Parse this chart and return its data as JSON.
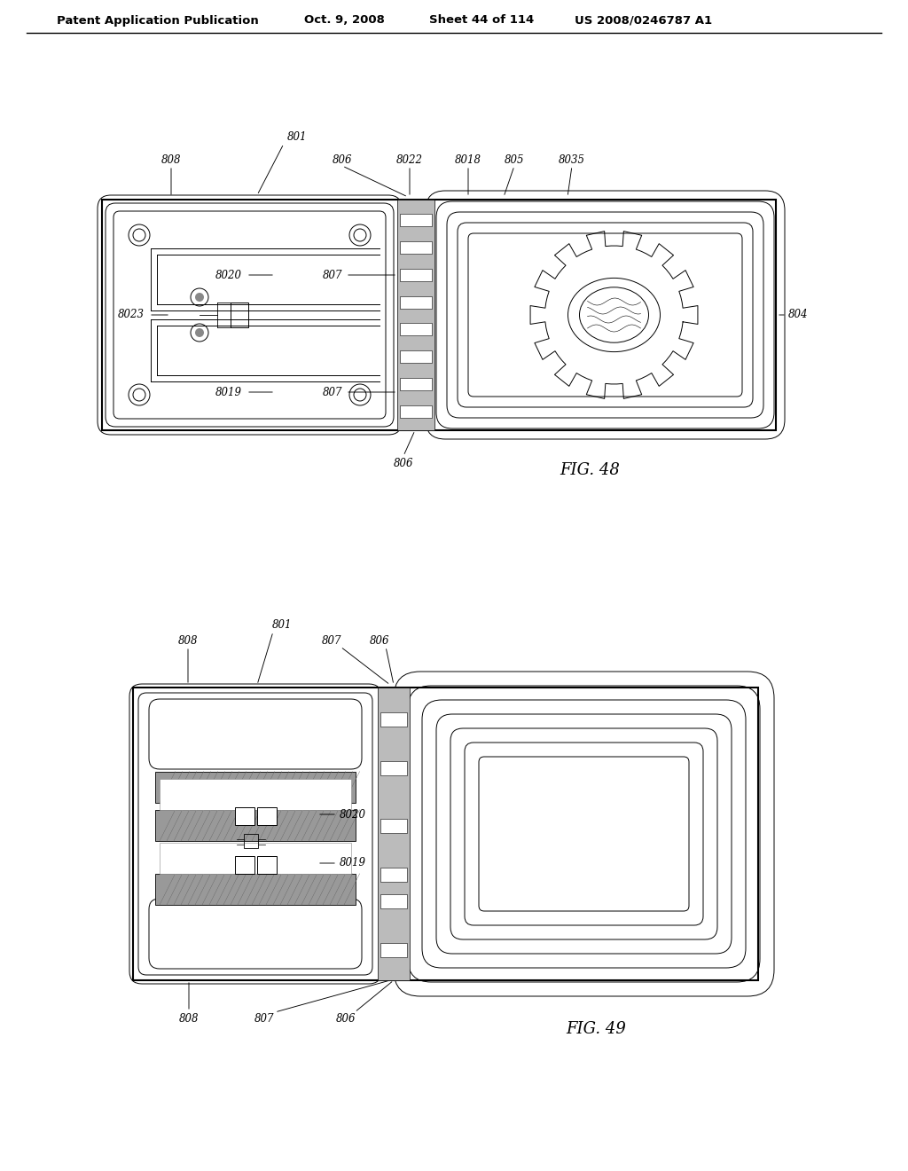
{
  "bg_color": "#ffffff",
  "line_color": "#000000",
  "header_text": "Patent Application Publication",
  "header_date": "Oct. 9, 2008",
  "header_sheet": "Sheet 44 of 114",
  "header_patent": "US 2008/0246787 A1",
  "fig48_label": "FIG. 48",
  "fig49_label": "FIG. 49"
}
